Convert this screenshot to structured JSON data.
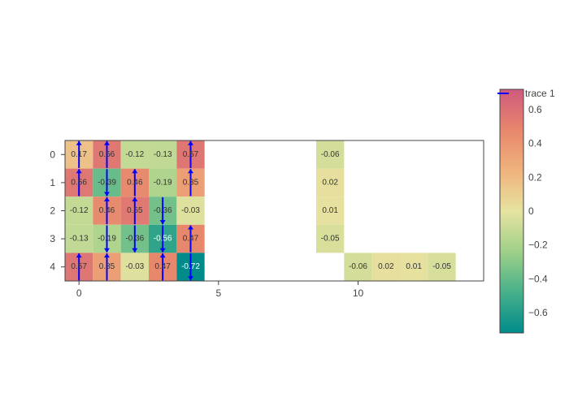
{
  "chart_data": {
    "type": "heatmap",
    "title": "",
    "xlabel": "",
    "ylabel": "",
    "xlim": [
      -0.5,
      14.5
    ],
    "ylim": [
      4.5,
      -0.5
    ],
    "x_tick_values": [
      0,
      5,
      10
    ],
    "x_tick_labels": [
      "0",
      "5",
      "10"
    ],
    "y_tick_values": [
      0,
      1,
      2,
      3,
      4
    ],
    "y_tick_labels": [
      "0",
      "1",
      "2",
      "3",
      "4"
    ],
    "cells": [
      {
        "x": 0,
        "y": 0,
        "value": 0.17,
        "label": "0.17"
      },
      {
        "x": 1,
        "y": 0,
        "value": 0.56,
        "label": "0.56"
      },
      {
        "x": 2,
        "y": 0,
        "value": -0.12,
        "label": "-0.12"
      },
      {
        "x": 3,
        "y": 0,
        "value": -0.13,
        "label": "-0.13"
      },
      {
        "x": 4,
        "y": 0,
        "value": 0.57,
        "label": "0.57"
      },
      {
        "x": 0,
        "y": 1,
        "value": 0.56,
        "label": "0.56"
      },
      {
        "x": 1,
        "y": 1,
        "value": -0.39,
        "label": "-0.39"
      },
      {
        "x": 2,
        "y": 1,
        "value": 0.46,
        "label": "0.46"
      },
      {
        "x": 3,
        "y": 1,
        "value": -0.19,
        "label": "-0.19"
      },
      {
        "x": 4,
        "y": 1,
        "value": 0.35,
        "label": "0.35"
      },
      {
        "x": 0,
        "y": 2,
        "value": -0.12,
        "label": "-0.12"
      },
      {
        "x": 1,
        "y": 2,
        "value": 0.46,
        "label": "0.46"
      },
      {
        "x": 2,
        "y": 2,
        "value": 0.55,
        "label": "0.55"
      },
      {
        "x": 3,
        "y": 2,
        "value": -0.36,
        "label": "-0.36"
      },
      {
        "x": 4,
        "y": 2,
        "value": -0.03,
        "label": "-0.03"
      },
      {
        "x": 0,
        "y": 3,
        "value": -0.13,
        "label": "-0.13"
      },
      {
        "x": 1,
        "y": 3,
        "value": -0.19,
        "label": "-0.19"
      },
      {
        "x": 2,
        "y": 3,
        "value": -0.36,
        "label": "-0.36"
      },
      {
        "x": 3,
        "y": 3,
        "value": -0.56,
        "label": "-0.56"
      },
      {
        "x": 4,
        "y": 3,
        "value": 0.47,
        "label": "0.47"
      },
      {
        "x": 0,
        "y": 4,
        "value": 0.57,
        "label": "0.57"
      },
      {
        "x": 1,
        "y": 4,
        "value": 0.35,
        "label": "0.35"
      },
      {
        "x": 2,
        "y": 4,
        "value": -0.03,
        "label": "-0.03"
      },
      {
        "x": 3,
        "y": 4,
        "value": 0.47,
        "label": "0.47"
      },
      {
        "x": 4,
        "y": 4,
        "value": -0.72,
        "label": "-0.72"
      },
      {
        "x": 9,
        "y": 0,
        "value": -0.06,
        "label": "-0.06"
      },
      {
        "x": 9,
        "y": 1,
        "value": 0.02,
        "label": "0.02"
      },
      {
        "x": 9,
        "y": 2,
        "value": 0.01,
        "label": "0.01"
      },
      {
        "x": 9,
        "y": 3,
        "value": -0.05,
        "label": "-0.05"
      },
      {
        "x": 10,
        "y": 4,
        "value": -0.06,
        "label": "-0.06"
      },
      {
        "x": 11,
        "y": 4,
        "value": 0.02,
        "label": "0.02"
      },
      {
        "x": 12,
        "y": 4,
        "value": 0.01,
        "label": "0.01"
      },
      {
        "x": 13,
        "y": 4,
        "value": -0.05,
        "label": "-0.05"
      }
    ],
    "arrows": [
      {
        "x": 0,
        "y": 0,
        "dir": "up"
      },
      {
        "x": 1,
        "y": 0,
        "dir": "up"
      },
      {
        "x": 4,
        "y": 0,
        "dir": "up"
      },
      {
        "x": 0,
        "y": 1,
        "dir": "up"
      },
      {
        "x": 1,
        "y": 1,
        "dir": "down"
      },
      {
        "x": 2,
        "y": 1,
        "dir": "up"
      },
      {
        "x": 4,
        "y": 1,
        "dir": "up"
      },
      {
        "x": 1,
        "y": 2,
        "dir": "up"
      },
      {
        "x": 2,
        "y": 2,
        "dir": "up"
      },
      {
        "x": 3,
        "y": 2,
        "dir": "down"
      },
      {
        "x": 1,
        "y": 3,
        "dir": "down"
      },
      {
        "x": 2,
        "y": 3,
        "dir": "down"
      },
      {
        "x": 3,
        "y": 3,
        "dir": "down"
      },
      {
        "x": 4,
        "y": 3,
        "dir": "up"
      },
      {
        "x": 0,
        "y": 4,
        "dir": "up"
      },
      {
        "x": 1,
        "y": 4,
        "dir": "up"
      },
      {
        "x": 3,
        "y": 4,
        "dir": "up"
      },
      {
        "x": 4,
        "y": 4,
        "dir": "down"
      }
    ],
    "colorscale": {
      "range": [
        -0.72,
        0.72
      ],
      "stops": [
        "#008b8b",
        "#47b08a",
        "#9fd089",
        "#e6e3a0",
        "#f0b37d",
        "#e7866b",
        "#cf5a7f"
      ],
      "tick_values": [
        0.6,
        0.4,
        0.2,
        0,
        -0.2,
        -0.4,
        -0.6
      ],
      "tick_labels": [
        "0.6",
        "0.4",
        "0.2",
        "0",
        "−0.2",
        "−0.4",
        "−0.6"
      ]
    },
    "legend": {
      "entries": [
        "trace 1"
      ],
      "position": "top-right"
    },
    "arrow_color": "#0000ff"
  }
}
